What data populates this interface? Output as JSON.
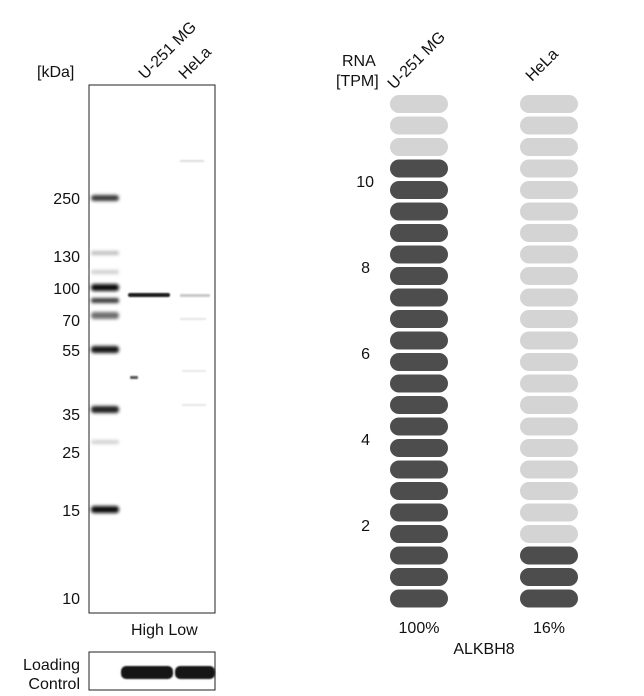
{
  "western_blot": {
    "unit_label": "[kDa]",
    "lanes": [
      "U-251 MG",
      "HeLa"
    ],
    "markers": [
      "250",
      "130",
      "100",
      "70",
      "55",
      "35",
      "25",
      "15",
      "10"
    ],
    "exposure": "High Low",
    "loading_control_label": [
      "Loading",
      "Control"
    ]
  },
  "rna": {
    "header": [
      "RNA",
      "[TPM]"
    ],
    "gene": "ALKBH8",
    "samples": [
      {
        "name": "U-251 MG",
        "percent": "100%",
        "filled_units": 21,
        "total_units": 24
      },
      {
        "name": "HeLa",
        "percent": "16%",
        "filled_units": 3,
        "total_units": 24
      }
    ],
    "ticks": [
      "2",
      "4",
      "6",
      "8",
      "10"
    ],
    "colors": {
      "filled": "#4d4d4d",
      "empty": "#d4d4d4"
    }
  }
}
